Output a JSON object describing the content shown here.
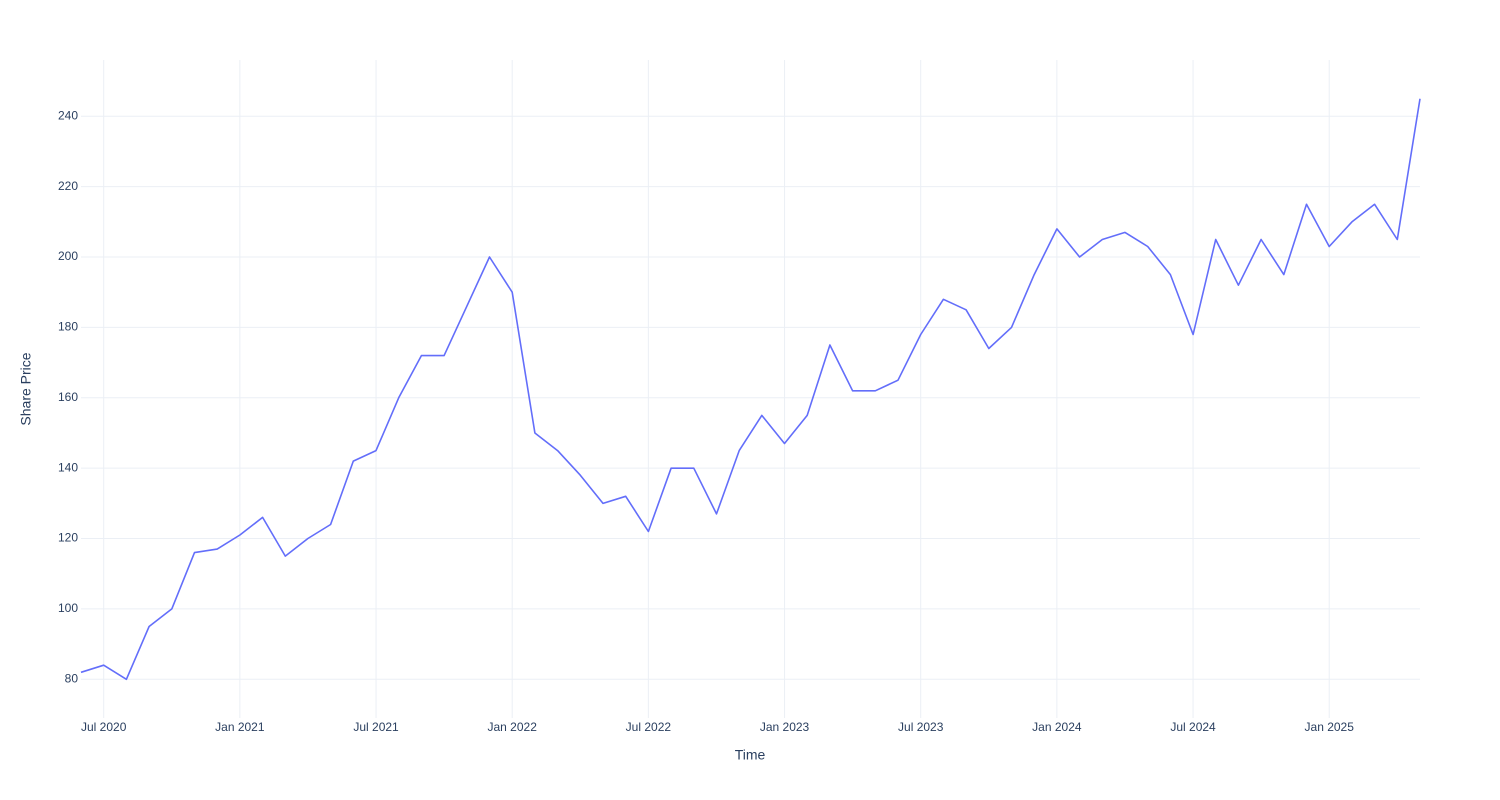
{
  "chart_data": {
    "type": "line",
    "x_label": "Time",
    "y_label": "Share Price",
    "x": [
      "2020-06",
      "2020-07",
      "2020-08",
      "2020-09",
      "2020-10",
      "2020-11",
      "2020-12",
      "2021-01",
      "2021-02",
      "2021-03",
      "2021-04",
      "2021-05",
      "2021-06",
      "2021-07",
      "2021-08",
      "2021-09",
      "2021-10",
      "2021-11",
      "2021-12",
      "2022-01",
      "2022-02",
      "2022-03",
      "2022-04",
      "2022-05",
      "2022-06",
      "2022-07",
      "2022-08",
      "2022-09",
      "2022-10",
      "2022-11",
      "2022-12",
      "2023-01",
      "2023-02",
      "2023-03",
      "2023-04",
      "2023-05",
      "2023-06",
      "2023-07",
      "2023-08",
      "2023-09",
      "2023-10",
      "2023-11",
      "2023-12",
      "2024-01",
      "2024-02",
      "2024-03",
      "2024-04",
      "2024-05",
      "2024-06",
      "2024-07",
      "2024-08",
      "2024-09",
      "2024-10",
      "2024-11",
      "2024-12",
      "2025-01",
      "2025-02",
      "2025-03",
      "2025-04",
      "2025-05"
    ],
    "series": [
      {
        "name": "Share Price",
        "color": "#636efa",
        "values": [
          82,
          84,
          80,
          95,
          100,
          116,
          117,
          121,
          126,
          115,
          120,
          124,
          142,
          145,
          160,
          172,
          172,
          186,
          200,
          190,
          150,
          145,
          138,
          130,
          132,
          122,
          140,
          140,
          127,
          145,
          155,
          147,
          155,
          175,
          162,
          162,
          165,
          178,
          188,
          185,
          174,
          180,
          195,
          208,
          200,
          205,
          207,
          203,
          195,
          178,
          205,
          192,
          205,
          195,
          215,
          203,
          210,
          215,
          205,
          245
        ]
      }
    ],
    "xlim": [
      "2020-06",
      "2025-05"
    ],
    "xticks": [
      {
        "value": "2020-07",
        "label": "Jul 2020"
      },
      {
        "value": "2021-01",
        "label": "Jan 2021"
      },
      {
        "value": "2021-07",
        "label": "Jul 2021"
      },
      {
        "value": "2022-01",
        "label": "Jan 2022"
      },
      {
        "value": "2022-07",
        "label": "Jul 2022"
      },
      {
        "value": "2023-01",
        "label": "Jan 2023"
      },
      {
        "value": "2023-07",
        "label": "Jul 2023"
      },
      {
        "value": "2024-01",
        "label": "Jan 2024"
      },
      {
        "value": "2024-07",
        "label": "Jul 2024"
      },
      {
        "value": "2025-01",
        "label": "Jan 2025"
      }
    ],
    "ylim": [
      69,
      256
    ],
    "yticks": [
      80,
      100,
      120,
      140,
      160,
      180,
      200,
      220,
      240
    ],
    "grid": true
  }
}
